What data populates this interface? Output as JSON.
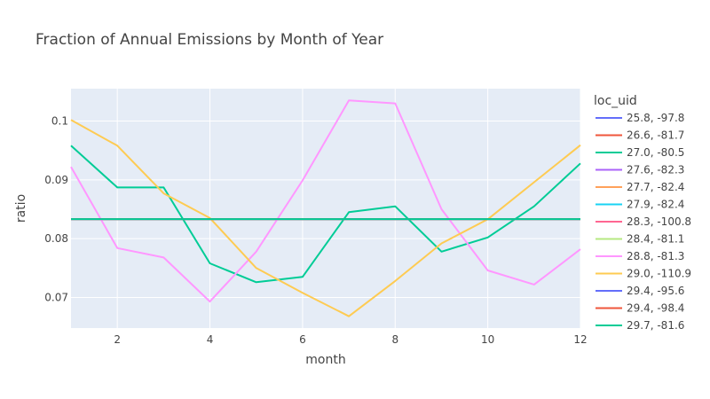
{
  "chart_data": {
    "type": "line",
    "title": "Fraction of Annual Emissions by Month of Year",
    "xlabel": "month",
    "ylabel": "ratio",
    "xlim": [
      1,
      12
    ],
    "ylim": [
      0.0648,
      0.1055
    ],
    "xticks": [
      2,
      4,
      6,
      8,
      10,
      12
    ],
    "yticks": [
      0.07,
      0.08,
      0.09,
      0.1
    ],
    "ytick_labels": [
      "0.07",
      "0.08",
      "0.09",
      "0.1"
    ],
    "grid": true,
    "plot_background": "#e5ecf6",
    "legend": {
      "title": "loc_uid",
      "placement": "right"
    },
    "x": [
      1,
      2,
      3,
      4,
      5,
      6,
      7,
      8,
      9,
      10,
      11,
      12
    ],
    "series": [
      {
        "name": "25.8, -97.8",
        "color": "#636efa",
        "values": [
          0.08333,
          0.08333,
          0.08333,
          0.08333,
          0.08333,
          0.08333,
          0.08333,
          0.08333,
          0.08333,
          0.08333,
          0.08333,
          0.08333
        ]
      },
      {
        "name": "26.6, -81.7",
        "color": "#ef553b",
        "values": [
          0.08333,
          0.08333,
          0.08333,
          0.08333,
          0.08333,
          0.08333,
          0.08333,
          0.08333,
          0.08333,
          0.08333,
          0.08333,
          0.08333
        ]
      },
      {
        "name": "27.0, -80.5",
        "color": "#00cc96",
        "values": [
          0.0958,
          0.0887,
          0.0887,
          0.0758,
          0.0726,
          0.0735,
          0.0845,
          0.0855,
          0.0778,
          0.0802,
          0.0855,
          0.0928
        ]
      },
      {
        "name": "27.6, -82.3",
        "color": "#ab63fa",
        "values": [
          0.08333,
          0.08333,
          0.08333,
          0.08333,
          0.08333,
          0.08333,
          0.08333,
          0.08333,
          0.08333,
          0.08333,
          0.08333,
          0.08333
        ]
      },
      {
        "name": "27.7, -82.4",
        "color": "#ffa15a",
        "values": [
          0.08333,
          0.08333,
          0.08333,
          0.08333,
          0.08333,
          0.08333,
          0.08333,
          0.08333,
          0.08333,
          0.08333,
          0.08333,
          0.08333
        ]
      },
      {
        "name": "27.9, -82.4",
        "color": "#19d3f3",
        "values": [
          0.08333,
          0.08333,
          0.08333,
          0.08333,
          0.08333,
          0.08333,
          0.08333,
          0.08333,
          0.08333,
          0.08333,
          0.08333,
          0.08333
        ]
      },
      {
        "name": "28.3, -100.8",
        "color": "#ff6692",
        "values": [
          0.08333,
          0.08333,
          0.08333,
          0.08333,
          0.08333,
          0.08333,
          0.08333,
          0.08333,
          0.08333,
          0.08333,
          0.08333,
          0.08333
        ]
      },
      {
        "name": "28.4, -81.1",
        "color": "#b6e880",
        "values": [
          0.08333,
          0.08333,
          0.08333,
          0.08333,
          0.08333,
          0.08333,
          0.08333,
          0.08333,
          0.08333,
          0.08333,
          0.08333,
          0.08333
        ]
      },
      {
        "name": "28.8, -81.3",
        "color": "#ff97ff",
        "values": [
          0.0922,
          0.0784,
          0.0768,
          0.0693,
          0.0778,
          0.0899,
          0.1035,
          0.103,
          0.085,
          0.0746,
          0.0722,
          0.0782
        ]
      },
      {
        "name": "29.0, -110.9",
        "color": "#fecb52",
        "values": [
          0.1002,
          0.0958,
          0.0877,
          0.0835,
          0.075,
          0.0708,
          0.0668,
          0.0728,
          0.0792,
          0.0833,
          0.0896,
          0.0959
        ]
      },
      {
        "name": "29.4, -95.6",
        "color": "#636efa",
        "values": [
          0.08333,
          0.08333,
          0.08333,
          0.08333,
          0.08333,
          0.08333,
          0.08333,
          0.08333,
          0.08333,
          0.08333,
          0.08333,
          0.08333
        ]
      },
      {
        "name": "29.4, -98.4",
        "color": "#ef553b",
        "values": [
          0.08333,
          0.08333,
          0.08333,
          0.08333,
          0.08333,
          0.08333,
          0.08333,
          0.08333,
          0.08333,
          0.08333,
          0.08333,
          0.08333
        ]
      },
      {
        "name": "29.7, -81.6",
        "color": "#00cc96",
        "values": [
          0.08333,
          0.08333,
          0.08333,
          0.08333,
          0.08333,
          0.08333,
          0.08333,
          0.08333,
          0.08333,
          0.08333,
          0.08333,
          0.08333
        ]
      }
    ]
  }
}
